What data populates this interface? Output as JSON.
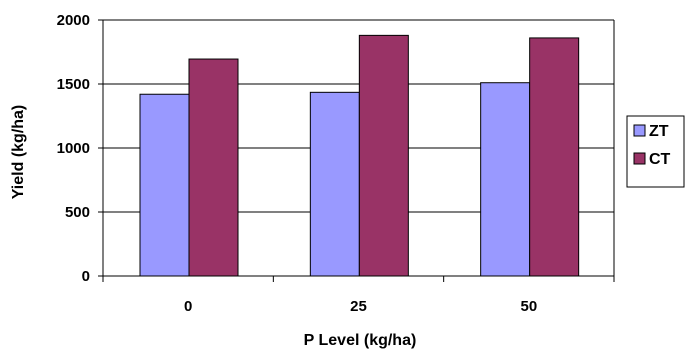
{
  "chart_data": {
    "type": "bar",
    "title": "",
    "xlabel": "P Level (kg/ha)",
    "ylabel": "Yield (kg/ha)",
    "categories": [
      "0",
      "25",
      "50"
    ],
    "series": [
      {
        "name": "ZT",
        "values": [
          1420,
          1435,
          1510
        ],
        "color": "#9999ff"
      },
      {
        "name": "CT",
        "values": [
          1695,
          1880,
          1860
        ],
        "color": "#993366"
      }
    ],
    "ylim": [
      0,
      2000
    ],
    "yticks": [
      0,
      500,
      1000,
      1500,
      2000
    ],
    "grid": true,
    "legend_position": "right"
  }
}
